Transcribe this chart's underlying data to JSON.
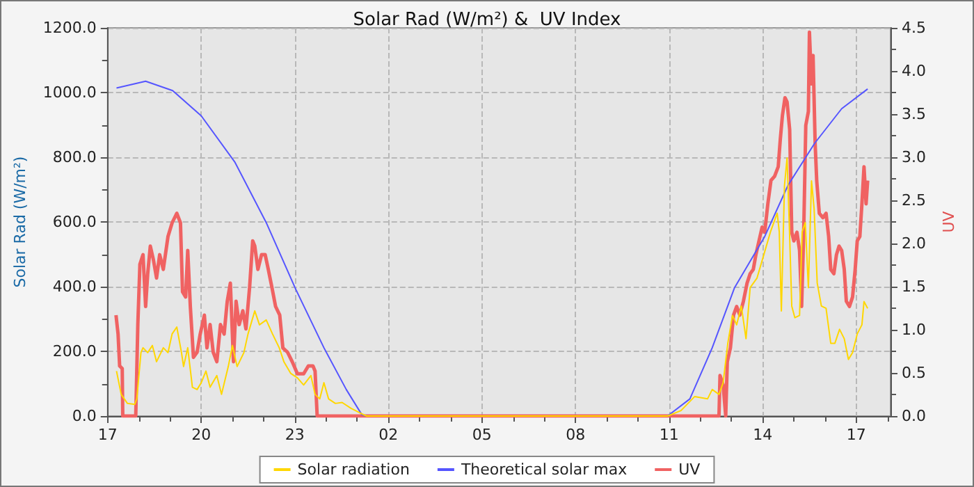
{
  "chart_data": {
    "type": "line",
    "title": "Solar Rad (W/m²) &  UV Index",
    "ylabel": "Solar Rad (W/m²)",
    "y2label": "UV",
    "xlim": [
      "--01-01T17:00",
      "--01-02T18:06"
    ],
    "xticks": [
      {
        "value": "--01-01T17:00",
        "label": "17"
      },
      {
        "value": "--01-01T18:00",
        "label": null
      },
      {
        "value": "--01-01T19:00",
        "label": null
      },
      {
        "value": "--01-01T20:00",
        "label": "20"
      },
      {
        "value": "--01-01T21:00",
        "label": null
      },
      {
        "value": "--01-01T22:00",
        "label": null
      },
      {
        "value": "--01-01T23:00",
        "label": "23"
      },
      {
        "value": "--01-02T00:00",
        "label": null
      },
      {
        "value": "--01-02T01:00",
        "label": null
      },
      {
        "value": "--01-02T02:00",
        "label": "02"
      },
      {
        "value": "--01-02T03:00",
        "label": null
      },
      {
        "value": "--01-02T04:00",
        "label": null
      },
      {
        "value": "--01-02T05:00",
        "label": "05"
      },
      {
        "value": "--01-02T06:00",
        "label": null
      },
      {
        "value": "--01-02T07:00",
        "label": null
      },
      {
        "value": "--01-02T08:00",
        "label": "08"
      },
      {
        "value": "--01-02T09:00",
        "label": null
      },
      {
        "value": "--01-02T10:00",
        "label": null
      },
      {
        "value": "--01-02T11:00",
        "label": "11"
      },
      {
        "value": "--01-02T12:00",
        "label": null
      },
      {
        "value": "--01-02T13:00",
        "label": null
      },
      {
        "value": "--01-02T14:00",
        "label": "14"
      },
      {
        "value": "--01-02T15:00",
        "label": null
      },
      {
        "value": "--01-02T16:00",
        "label": null
      },
      {
        "value": "--01-02T17:00",
        "label": "17"
      },
      {
        "value": "--01-02T18:00",
        "label": null
      }
    ],
    "ylim": [
      0,
      1200
    ],
    "yticks": [
      {
        "value": 0,
        "label": "0.0"
      },
      {
        "value": 100,
        "label": null
      },
      {
        "value": 200,
        "label": "200.0"
      },
      {
        "value": 300,
        "label": null
      },
      {
        "value": 400,
        "label": "400.0"
      },
      {
        "value": 500,
        "label": null
      },
      {
        "value": 600,
        "label": "600.0"
      },
      {
        "value": 700,
        "label": null
      },
      {
        "value": 800,
        "label": "800.0"
      },
      {
        "value": 900,
        "label": null
      },
      {
        "value": 1000,
        "label": "1000.0"
      },
      {
        "value": 1100,
        "label": null
      },
      {
        "value": 1200,
        "label": "1200.0"
      }
    ],
    "y2lim": [
      0,
      4.5
    ],
    "y2ticks": [
      {
        "value": 0,
        "label": "0.0"
      },
      {
        "value": 0.25,
        "label": null
      },
      {
        "value": 0.5,
        "label": "0.5"
      },
      {
        "value": 0.75,
        "label": null
      },
      {
        "value": 1,
        "label": "1.0"
      },
      {
        "value": 1.25,
        "label": null
      },
      {
        "value": 1.5,
        "label": "1.5"
      },
      {
        "value": 1.75,
        "label": null
      },
      {
        "value": 2,
        "label": "2.0"
      },
      {
        "value": 2.25,
        "label": null
      },
      {
        "value": 2.5,
        "label": "2.5"
      },
      {
        "value": 2.75,
        "label": null
      },
      {
        "value": 3,
        "label": "3.0"
      },
      {
        "value": 3.25,
        "label": null
      },
      {
        "value": 3.5,
        "label": "3.5"
      },
      {
        "value": 3.75,
        "label": null
      },
      {
        "value": 4,
        "label": "4.0"
      },
      {
        "value": 4.25,
        "label": null
      },
      {
        "value": 4.5,
        "label": "4.5"
      }
    ],
    "grid": true,
    "legend": "bottom",
    "marker": "none",
    "line_style": "solid",
    "series": [
      {
        "name": "Solar radiation",
        "color": "#ffd700",
        "x": [
          "--01-01T17:17",
          "--01-01T17:26",
          "--01-01T17:38",
          "--01-01T17:52",
          "--01-01T17:56",
          "--01-01T18:04",
          "--01-01T18:08",
          "--01-01T18:17",
          "--01-01T18:26",
          "--01-01T18:34",
          "--01-01T18:47",
          "--01-01T18:56",
          "--01-01T19:04",
          "--01-01T19:13",
          "--01-01T19:22",
          "--01-01T19:26",
          "--01-01T19:34",
          "--01-01T19:43",
          "--01-01T19:52",
          "--01-01T20:00",
          "--01-01T20:09",
          "--01-01T20:17",
          "--01-01T20:30",
          "--01-01T20:39",
          "--01-01T20:52",
          "--01-01T21:00",
          "--01-01T21:09",
          "--01-01T21:22",
          "--01-01T21:30",
          "--01-01T21:43",
          "--01-01T21:52",
          "--01-01T22:05",
          "--01-01T22:17",
          "--01-01T22:30",
          "--01-01T22:39",
          "--01-01T22:52",
          "--01-01T23:05",
          "--01-01T23:17",
          "--01-01T23:31",
          "--01-01T23:39",
          "--01-01T23:48",
          "--01-01T23:56",
          "--01-02T00:05",
          "--01-02T00:18",
          "--01-02T00:31",
          "--01-02T00:48",
          "--01-02T01:05",
          "--01-02T01:18",
          "--01-02T06:00",
          "--01-02T10:57",
          "--01-02T11:23",
          "--01-02T11:49",
          "--01-02T12:14",
          "--01-02T12:23",
          "--01-02T12:36",
          "--01-02T12:44",
          "--01-02T12:53",
          "--01-02T13:02",
          "--01-02T13:10",
          "--01-02T13:19",
          "--01-02T13:28",
          "--01-02T13:36",
          "--01-02T13:49",
          "--01-02T14:02",
          "--01-02T14:15",
          "--01-02T14:28",
          "--01-02T14:32",
          "--01-02T14:36",
          "--01-02T14:42",
          "--01-02T14:47",
          "--01-02T14:52",
          "--01-02T14:56",
          "--01-02T15:02",
          "--01-02T15:11",
          "--01-02T15:16",
          "--01-02T15:22",
          "--01-02T15:28",
          "--01-02T15:34",
          "--01-02T15:39",
          "--01-02T15:45",
          "--01-02T15:53",
          "--01-02T16:02",
          "--01-02T16:11",
          "--01-02T16:19",
          "--01-02T16:28",
          "--01-02T16:37",
          "--01-02T16:45",
          "--01-02T16:53",
          "--01-02T17:02",
          "--01-02T17:11",
          "--01-02T17:15",
          "--01-02T17:22"
        ],
        "values": [
          139,
          67,
          39,
          36,
          53,
          196,
          211,
          196,
          218,
          168,
          211,
          196,
          254,
          275,
          196,
          153,
          211,
          89,
          82,
          103,
          139,
          89,
          125,
          67,
          153,
          218,
          153,
          196,
          254,
          325,
          282,
          297,
          254,
          211,
          168,
          132,
          118,
          96,
          125,
          67,
          53,
          103,
          53,
          39,
          42,
          24,
          10,
          0,
          0,
          0,
          17,
          60,
          53,
          82,
          67,
          103,
          225,
          311,
          282,
          340,
          239,
          397,
          426,
          497,
          569,
          627,
          569,
          325,
          712,
          798,
          555,
          340,
          304,
          311,
          569,
          598,
          397,
          727,
          641,
          411,
          340,
          333,
          225,
          225,
          268,
          239,
          175,
          196,
          254,
          282,
          354,
          333
        ]
      },
      {
        "name": "Theoretical solar max",
        "color": "#5555ff",
        "x": [
          "--01-01T17:17",
          "--01-01T18:13",
          "--01-01T19:05",
          "--01-01T20:00",
          "--01-01T21:05",
          "--01-01T22:05",
          "--01-01T23:02",
          "--01-01T23:56",
          "--01-02T00:39",
          "--01-02T01:09",
          "--01-02T01:18",
          "--01-02T06:00",
          "--01-02T10:57",
          "--01-02T11:40",
          "--01-02T12:23",
          "--01-02T13:06",
          "--01-02T14:04",
          "--01-02T14:49",
          "--01-02T15:40",
          "--01-02T16:32",
          "--01-02T17:22"
        ],
        "values": [
          1014,
          1035,
          1006,
          928,
          784,
          598,
          391,
          211,
          82,
          4,
          0,
          0,
          0,
          53,
          211,
          397,
          555,
          714,
          843,
          950,
          1011
        ]
      },
      {
        "name": "UV",
        "color": "#f06262",
        "axis": "y2",
        "x": [
          "--01-01T17:16",
          "--01-01T17:20",
          "--01-01T17:23",
          "--01-01T17:28",
          "--01-01T17:29",
          "--01-01T17:54",
          "--01-01T17:58",
          "--01-01T18:02",
          "--01-01T18:08",
          "--01-01T18:13",
          "--01-01T18:17",
          "--01-01T18:22",
          "--01-01T18:28",
          "--01-01T18:34",
          "--01-01T18:40",
          "--01-01T18:47",
          "--01-01T18:56",
          "--01-01T19:04",
          "--01-01T19:13",
          "--01-01T19:20",
          "--01-01T19:24",
          "--01-01T19:30",
          "--01-01T19:34",
          "--01-01T19:39",
          "--01-01T19:45",
          "--01-01T19:52",
          "--01-01T19:58",
          "--01-01T20:06",
          "--01-01T20:11",
          "--01-01T20:17",
          "--01-01T20:23",
          "--01-01T20:30",
          "--01-01T20:37",
          "--01-01T20:44",
          "--01-01T20:50",
          "--01-01T20:56",
          "--01-01T21:02",
          "--01-01T21:07",
          "--01-01T21:13",
          "--01-01T21:20",
          "--01-01T21:26",
          "--01-01T21:33",
          "--01-01T21:39",
          "--01-01T21:43",
          "--01-01T21:49",
          "--01-01T21:56",
          "--01-01T22:03",
          "--01-01T22:09",
          "--01-01T22:16",
          "--01-01T22:23",
          "--01-01T22:31",
          "--01-01T22:37",
          "--01-01T22:46",
          "--01-01T22:55",
          "--01-01T23:05",
          "--01-01T23:17",
          "--01-01T23:26",
          "--01-01T23:35",
          "--01-01T23:39",
          "--01-01T23:43",
          "--01-02T06:00",
          "--01-02T12:36",
          "--01-02T12:38",
          "--01-02T12:44",
          "--01-02T12:49",
          "--01-02T12:52",
          "--01-02T12:58",
          "--01-02T13:04",
          "--01-02T13:10",
          "--01-02T13:16",
          "--01-02T13:23",
          "--01-02T13:30",
          "--01-02T13:36",
          "--01-02T13:42",
          "--01-02T13:47",
          "--01-02T13:53",
          "--01-02T13:59",
          "--01-02T14:04",
          "--01-02T14:10",
          "--01-02T14:16",
          "--01-02T14:23",
          "--01-02T14:30",
          "--01-02T14:34",
          "--01-02T14:38",
          "--01-02T14:43",
          "--01-02T14:47",
          "--01-02T14:52",
          "--01-02T14:56",
          "--01-02T15:00",
          "--01-02T15:06",
          "--01-02T15:11",
          "--01-02T15:15",
          "--01-02T15:19",
          "--01-02T15:23",
          "--01-02T15:28",
          "--01-02T15:30",
          "--01-02T15:34",
          "--01-02T15:37",
          "--01-02T15:41",
          "--01-02T15:44",
          "--01-02T15:49",
          "--01-02T15:56",
          "--01-02T16:02",
          "--01-02T16:07",
          "--01-02T16:11",
          "--01-02T16:17",
          "--01-02T16:22",
          "--01-02T16:27",
          "--01-02T16:32",
          "--01-02T16:37",
          "--01-02T16:41",
          "--01-02T16:47",
          "--01-02T16:53",
          "--01-02T16:58",
          "--01-02T17:02",
          "--01-02T17:07",
          "--01-02T17:11",
          "--01-02T17:15",
          "--01-02T17:19",
          "--01-02T17:22"
        ],
        "values": [
          1.17,
          0.95,
          0.58,
          0.55,
          0,
          0,
          1.06,
          1.76,
          1.87,
          1.27,
          1.65,
          1.97,
          1.81,
          1.6,
          1.87,
          1.7,
          2.08,
          2.24,
          2.35,
          2.24,
          1.44,
          1.38,
          1.92,
          1.27,
          0.68,
          0.74,
          0.95,
          1.17,
          0.79,
          1.06,
          0.74,
          0.63,
          1.06,
          0.95,
          1.33,
          1.54,
          0.63,
          1.33,
          1.06,
          1.22,
          1.01,
          1.49,
          2.03,
          1.97,
          1.7,
          1.87,
          1.87,
          1.7,
          1.49,
          1.27,
          1.17,
          0.79,
          0.74,
          0.63,
          0.49,
          0.49,
          0.58,
          0.58,
          0.52,
          0,
          0,
          0,
          0.47,
          0.36,
          0,
          0.63,
          0.79,
          1.17,
          1.27,
          1.17,
          1.33,
          1.54,
          1.65,
          1.7,
          1.87,
          2.03,
          2.19,
          2.13,
          2.46,
          2.73,
          2.78,
          2.89,
          3.21,
          3.48,
          3.69,
          3.64,
          3.32,
          2.13,
          2.03,
          2.13,
          1.92,
          1.27,
          2.13,
          3.37,
          3.53,
          4.45,
          3.85,
          4.18,
          3.16,
          2.73,
          2.35,
          2.3,
          2.35,
          2.08,
          1.7,
          1.65,
          1.87,
          1.97,
          1.92,
          1.7,
          1.33,
          1.27,
          1.38,
          1.7,
          2.03,
          2.08,
          2.46,
          2.89,
          2.46,
          2.73
        ]
      }
    ]
  }
}
